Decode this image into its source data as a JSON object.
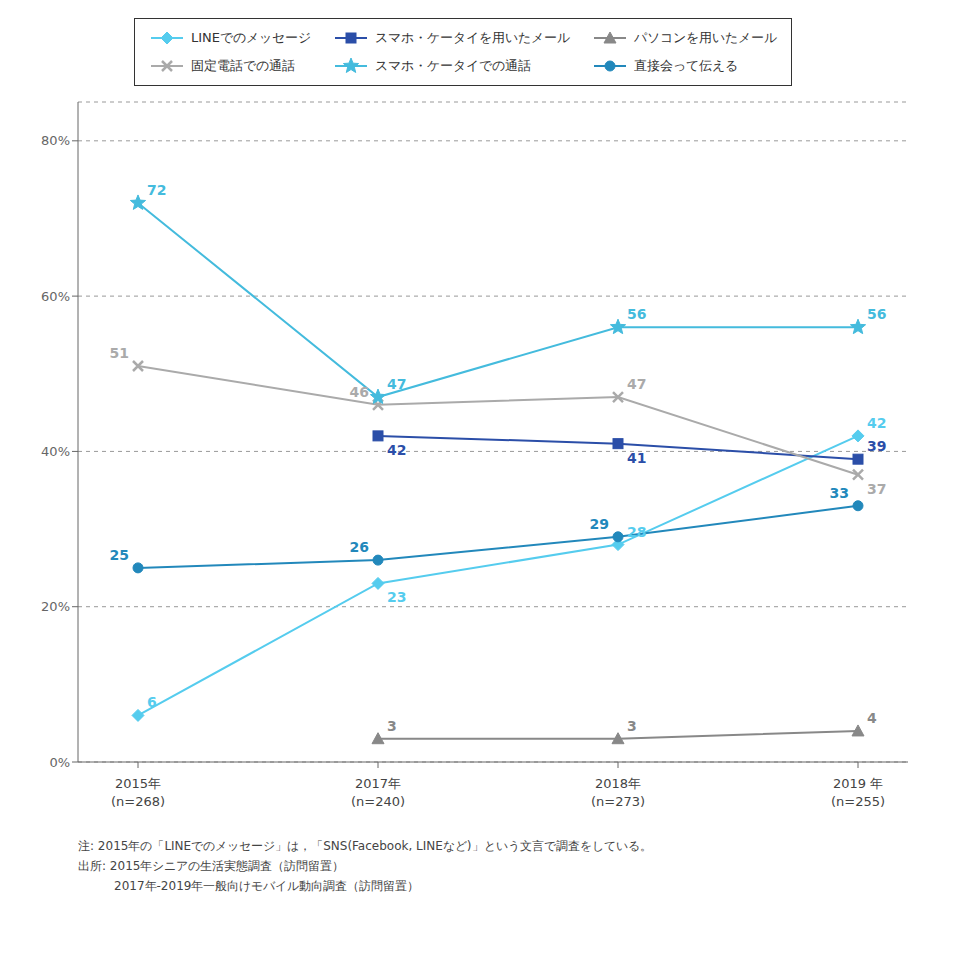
{
  "chart_data": {
    "type": "line",
    "categories": [
      "2015年\n(n=268)",
      "2017年\n(n=240)",
      "2018年\n(n=273)",
      "2019 年\n(n=255)"
    ],
    "series": [
      {
        "name": "LINEでのメッセージ",
        "values": [
          6,
          23,
          28,
          42
        ],
        "color": "#55CCEE",
        "marker": "diamond"
      },
      {
        "name": "スマホ・ケータイを用いたメール",
        "values": [
          null,
          42,
          41,
          39
        ],
        "color": "#2B4EA8",
        "marker": "square"
      },
      {
        "name": "パソコンを用いたメール",
        "values": [
          null,
          3,
          3,
          4
        ],
        "color": "#888888",
        "marker": "triangle"
      },
      {
        "name": "固定電話での通話",
        "values": [
          51,
          46,
          47,
          37
        ],
        "color": "#AAAAAA",
        "marker": "cross"
      },
      {
        "name": "スマホ・ケータイでの通話",
        "values": [
          72,
          47,
          56,
          56
        ],
        "color": "#44BBDD",
        "marker": "star"
      },
      {
        "name": "直接会って伝える",
        "values": [
          25,
          26,
          29,
          33
        ],
        "color": "#2288BB",
        "marker": "circle"
      }
    ],
    "ylim": [
      0,
      85
    ],
    "yticks": [
      {
        "value": 0,
        "label": "0%"
      },
      {
        "value": 20,
        "label": "20%"
      },
      {
        "value": 40,
        "label": "40%"
      },
      {
        "value": 60,
        "label": "60%"
      },
      {
        "value": 80,
        "label": "80%"
      }
    ],
    "grid": true,
    "legend": "top",
    "data_labels": true,
    "annotations": [
      "注: 2015年の「LINEでのメッセージ」は，「SNS(Facebook, LINEなど)」という文言で調査をしている。",
      "出所: 2015年シニアの生活実態調査（訪問留置）",
      "　　　2017年-2019年一般向けモバイル動向調査（訪問留置）"
    ]
  }
}
